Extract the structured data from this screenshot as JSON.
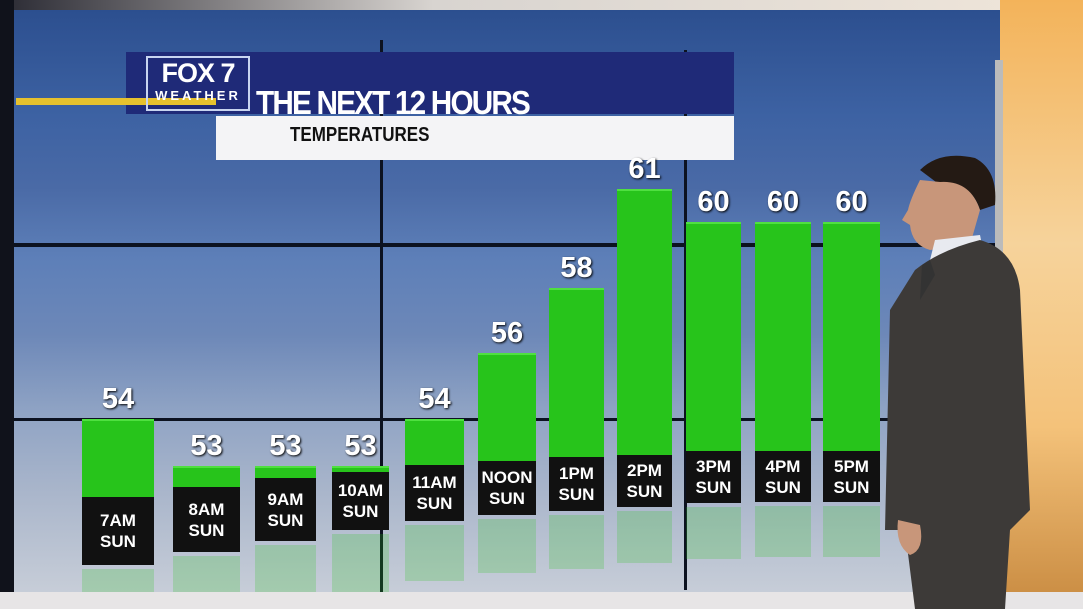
{
  "header": {
    "logo_top": "FOX 7",
    "logo_bottom": "WEATHER",
    "title": "THE NEXT 12 HOURS",
    "subtitle": "TEMPERATURES"
  },
  "colors": {
    "bar": "#27c41b",
    "header": "#1f2a78",
    "accent": "#e6c12e"
  },
  "chart_data": {
    "type": "bar",
    "title": "THE NEXT 12 HOURS",
    "subtitle": "TEMPERATURES",
    "categories": [
      {
        "time": "7AM",
        "day": "SUN"
      },
      {
        "time": "8AM",
        "day": "SUN"
      },
      {
        "time": "9AM",
        "day": "SUN"
      },
      {
        "time": "10AM",
        "day": "SUN"
      },
      {
        "time": "11AM",
        "day": "SUN"
      },
      {
        "time": "NOON",
        "day": "SUN"
      },
      {
        "time": "1PM",
        "day": "SUN"
      },
      {
        "time": "2PM",
        "day": "SUN"
      },
      {
        "time": "3PM",
        "day": "SUN"
      },
      {
        "time": "4PM",
        "day": "SUN"
      },
      {
        "time": "5PM",
        "day": "SUN"
      }
    ],
    "values": [
      54,
      53,
      53,
      53,
      54,
      56,
      58,
      61,
      60,
      60,
      60
    ],
    "xlabel": "",
    "ylabel": "",
    "grid": false
  }
}
